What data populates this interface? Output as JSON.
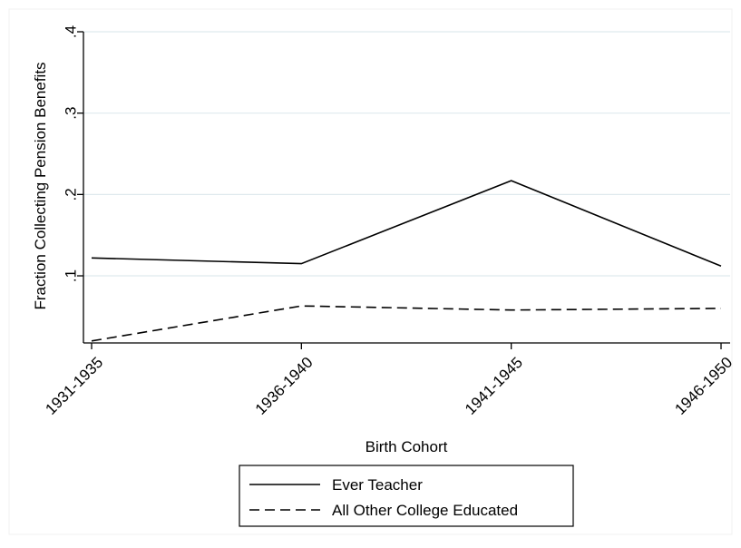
{
  "chart_data": {
    "type": "line",
    "title": "",
    "xlabel": "Birth Cohort",
    "ylabel": "Fraction Collecting Pension Benefits",
    "categories": [
      "1931-1935",
      "1936-1940",
      "1941-1945",
      "1946-1950"
    ],
    "yticks": [
      0.1,
      0.2,
      0.3,
      0.4
    ],
    "ytick_labels": [
      ".1",
      ".2",
      ".3",
      ".4"
    ],
    "ylim": [
      0.0175,
      0.4
    ],
    "grid": true,
    "legend_position": "bottom",
    "series": [
      {
        "name": "Ever Teacher",
        "values": [
          0.122,
          0.115,
          0.217,
          0.112
        ],
        "line_style": "solid",
        "color": "#000000"
      },
      {
        "name": "All Other College Educated",
        "values": [
          0.02,
          0.063,
          0.058,
          0.06
        ],
        "line_style": "dashed",
        "color": "#000000"
      }
    ],
    "colors": {
      "grid": "#dfe9ee",
      "axis": "#000000",
      "background": "#ffffff"
    }
  }
}
